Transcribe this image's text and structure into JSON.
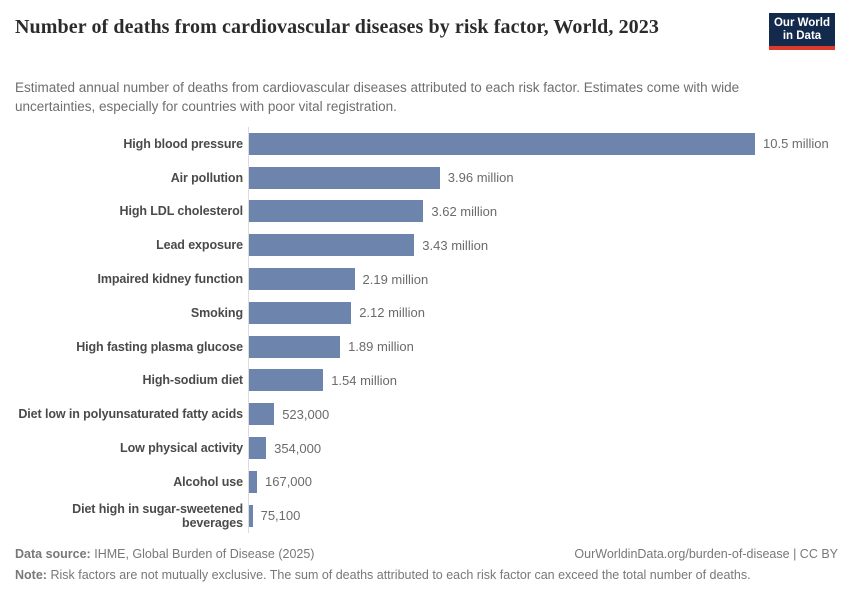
{
  "header": {
    "title": "Number of deaths from cardiovascular diseases by risk factor, World, 2023",
    "subtitle": "Estimated annual number of deaths from cardiovascular diseases attributed to each risk factor. Estimates come with wide uncertainties, especially for countries with poor vital registration."
  },
  "logo": {
    "line1": "Our World",
    "line2": "in Data",
    "bg_color": "#132a4d",
    "accent_color": "#dc3a2b"
  },
  "chart_data": {
    "type": "bar",
    "orientation": "horizontal",
    "title": "Number of deaths from cardiovascular diseases by risk factor, World, 2023",
    "xlabel": "",
    "ylabel": "",
    "grid": false,
    "legend": false,
    "xlim": [
      0,
      10500000
    ],
    "bar_color": "#6d84ad",
    "axis_line_color": "#dcdcdc",
    "categories": [
      "High blood pressure",
      "Air pollution",
      "High LDL cholesterol",
      "Lead exposure",
      "Impaired kidney function",
      "Smoking",
      "High fasting plasma glucose",
      "High-sodium diet",
      "Diet low in polyunsaturated fatty acids",
      "Low physical activity",
      "Alcohol use",
      "Diet high in sugar-sweetened beverages"
    ],
    "values": [
      10500000,
      3960000,
      3620000,
      3430000,
      2190000,
      2120000,
      1890000,
      1540000,
      523000,
      354000,
      167000,
      75100
    ],
    "value_labels": [
      "10.5 million",
      "3.96 million",
      "3.62 million",
      "3.43 million",
      "2.19 million",
      "2.12 million",
      "1.89 million",
      "1.54 million",
      "523,000",
      "354,000",
      "167,000",
      "75,100"
    ]
  },
  "footer": {
    "data_source_label": "Data source:",
    "data_source": "IHME, Global Burden of Disease (2025)",
    "link": "OurWorldinData.org/burden-of-disease",
    "separator": "|",
    "license": "CC BY",
    "note_label": "Note:",
    "note": "Risk factors are not mutually exclusive. The sum of deaths attributed to each risk factor can exceed the total number of deaths."
  }
}
